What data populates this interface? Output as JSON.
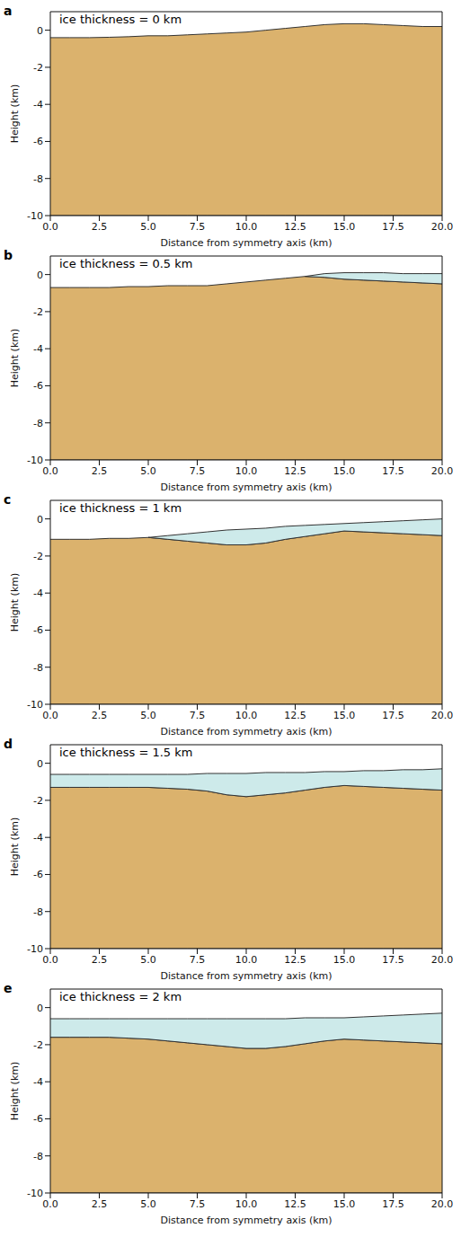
{
  "chart_data": [
    {
      "type": "area",
      "title": "a",
      "annotation": "ice thickness = 0 km",
      "x_label": "Distance from symmetry axis (km)",
      "y_label": "Height (km)",
      "xlim": [
        0,
        20
      ],
      "ylim": [
        -10,
        1
      ],
      "xticks": [
        {
          "value": 0,
          "label": "0.0"
        },
        {
          "value": 2.5,
          "label": "2.5"
        },
        {
          "value": 5,
          "label": "5.0"
        },
        {
          "value": 7.5,
          "label": "7.5"
        },
        {
          "value": 10,
          "label": "10.0"
        },
        {
          "value": 12.5,
          "label": "12.5"
        },
        {
          "value": 15,
          "label": "15.0"
        },
        {
          "value": 17.5,
          "label": "17.5"
        },
        {
          "value": 20,
          "label": "20.0"
        }
      ],
      "yticks": [
        -10,
        -8,
        -6,
        -4,
        -2,
        0
      ],
      "x": [
        0,
        1,
        2,
        3,
        4,
        5,
        6,
        7,
        8,
        9,
        10,
        11,
        12,
        13,
        14,
        15,
        16,
        17,
        18,
        19,
        20
      ],
      "series": [
        {
          "color": "#dbb26d",
          "values": [
            -0.4,
            -0.4,
            -0.4,
            -0.38,
            -0.35,
            -0.3,
            -0.3,
            -0.25,
            -0.2,
            -0.15,
            -0.1,
            0,
            0.1,
            0.2,
            0.3,
            0.35,
            0.35,
            0.3,
            0.25,
            0.2,
            0.2
          ]
        }
      ]
    },
    {
      "type": "area",
      "title": "b",
      "annotation": "ice thickness = 0.5 km",
      "x_label": "Distance from symmetry axis (km)",
      "y_label": "Height (km)",
      "xlim": [
        0,
        20
      ],
      "ylim": [
        -10,
        1
      ],
      "xticks": [
        {
          "value": 0,
          "label": "0.0"
        },
        {
          "value": 2.5,
          "label": "2.5"
        },
        {
          "value": 5,
          "label": "5.0"
        },
        {
          "value": 7.5,
          "label": "7.5"
        },
        {
          "value": 10,
          "label": "10.0"
        },
        {
          "value": 12.5,
          "label": "12.5"
        },
        {
          "value": 15,
          "label": "15.0"
        },
        {
          "value": 17.5,
          "label": "17.5"
        },
        {
          "value": 20,
          "label": "20.0"
        }
      ],
      "yticks": [
        -10,
        -8,
        -6,
        -4,
        -2,
        0
      ],
      "x": [
        0,
        1,
        2,
        3,
        4,
        5,
        6,
        7,
        8,
        9,
        10,
        11,
        12,
        13,
        14,
        15,
        16,
        17,
        18,
        19,
        20
      ],
      "series": [
        {
          "color": "#dbb26d",
          "values": [
            -0.7,
            -0.7,
            -0.7,
            -0.7,
            -0.65,
            -0.65,
            -0.6,
            -0.6,
            -0.6,
            -0.5,
            -0.4,
            -0.3,
            -0.2,
            -0.1,
            -0.15,
            -0.25,
            -0.3,
            -0.35,
            -0.4,
            -0.45,
            -0.5
          ]
        },
        {
          "color": "#cdeaea",
          "values": [
            null,
            null,
            null,
            null,
            null,
            null,
            null,
            null,
            null,
            null,
            null,
            null,
            null,
            -0.1,
            0.05,
            0.1,
            0.1,
            0.1,
            0.05,
            0.05,
            0.05
          ]
        }
      ]
    },
    {
      "type": "area",
      "title": "c",
      "annotation": "ice thickness = 1 km",
      "x_label": "Distance from symmetry axis (km)",
      "y_label": "Height (km)",
      "xlim": [
        0,
        20
      ],
      "ylim": [
        -10,
        1
      ],
      "xticks": [
        {
          "value": 0,
          "label": "0.0"
        },
        {
          "value": 2.5,
          "label": "2.5"
        },
        {
          "value": 5,
          "label": "5.0"
        },
        {
          "value": 7.5,
          "label": "7.5"
        },
        {
          "value": 10,
          "label": "10.0"
        },
        {
          "value": 12.5,
          "label": "12.5"
        },
        {
          "value": 15,
          "label": "15.0"
        },
        {
          "value": 17.5,
          "label": "17.5"
        },
        {
          "value": 20,
          "label": "20.0"
        }
      ],
      "yticks": [
        -10,
        -8,
        -6,
        -4,
        -2,
        0
      ],
      "x": [
        0,
        1,
        2,
        3,
        4,
        5,
        6,
        7,
        8,
        9,
        10,
        11,
        12,
        13,
        14,
        15,
        16,
        17,
        18,
        19,
        20
      ],
      "series": [
        {
          "color": "#dbb26d",
          "values": [
            -1.1,
            -1.1,
            -1.1,
            -1.05,
            -1.05,
            -1.0,
            -1.1,
            -1.2,
            -1.3,
            -1.4,
            -1.4,
            -1.3,
            -1.1,
            -0.95,
            -0.8,
            -0.65,
            -0.7,
            -0.75,
            -0.8,
            -0.85,
            -0.9
          ]
        },
        {
          "color": "#cdeaea",
          "values": [
            null,
            null,
            null,
            null,
            null,
            -1.0,
            -0.9,
            -0.8,
            -0.7,
            -0.6,
            -0.55,
            -0.5,
            -0.4,
            -0.35,
            -0.3,
            -0.25,
            -0.2,
            -0.15,
            -0.1,
            -0.05,
            0
          ]
        }
      ]
    },
    {
      "type": "area",
      "title": "d",
      "annotation": "ice thickness = 1.5 km",
      "x_label": "Distance from symmetry axis (km)",
      "y_label": "Height (km)",
      "xlim": [
        0,
        20
      ],
      "ylim": [
        -10,
        1
      ],
      "xticks": [
        {
          "value": 0,
          "label": "0.0"
        },
        {
          "value": 2.5,
          "label": "2.5"
        },
        {
          "value": 5,
          "label": "5.0"
        },
        {
          "value": 7.5,
          "label": "7.5"
        },
        {
          "value": 10,
          "label": "10.0"
        },
        {
          "value": 12.5,
          "label": "12.5"
        },
        {
          "value": 15,
          "label": "15.0"
        },
        {
          "value": 17.5,
          "label": "17.5"
        },
        {
          "value": 20,
          "label": "20.0"
        }
      ],
      "yticks": [
        -10,
        -8,
        -6,
        -4,
        -2,
        0
      ],
      "x": [
        0,
        1,
        2,
        3,
        4,
        5,
        6,
        7,
        8,
        9,
        10,
        11,
        12,
        13,
        14,
        15,
        16,
        17,
        18,
        19,
        20
      ],
      "series": [
        {
          "color": "#dbb26d",
          "values": [
            -1.3,
            -1.3,
            -1.3,
            -1.3,
            -1.3,
            -1.3,
            -1.35,
            -1.4,
            -1.5,
            -1.7,
            -1.8,
            -1.7,
            -1.6,
            -1.45,
            -1.3,
            -1.2,
            -1.25,
            -1.3,
            -1.35,
            -1.4,
            -1.45
          ]
        },
        {
          "color": "#cdeaea",
          "values": [
            -0.6,
            -0.6,
            -0.6,
            -0.6,
            -0.6,
            -0.6,
            -0.6,
            -0.6,
            -0.55,
            -0.55,
            -0.55,
            -0.5,
            -0.5,
            -0.5,
            -0.45,
            -0.45,
            -0.4,
            -0.4,
            -0.35,
            -0.35,
            -0.3
          ]
        }
      ]
    },
    {
      "type": "area",
      "title": "e",
      "annotation": "ice thickness = 2 km",
      "x_label": "Distance from symmetry axis (km)",
      "y_label": "Height (km)",
      "xlim": [
        0,
        20
      ],
      "ylim": [
        -10,
        1
      ],
      "xticks": [
        {
          "value": 0,
          "label": "0.0"
        },
        {
          "value": 2.5,
          "label": "2.5"
        },
        {
          "value": 5,
          "label": "5.0"
        },
        {
          "value": 7.5,
          "label": "7.5"
        },
        {
          "value": 10,
          "label": "10.0"
        },
        {
          "value": 12.5,
          "label": "12.5"
        },
        {
          "value": 15,
          "label": "15.0"
        },
        {
          "value": 17.5,
          "label": "17.5"
        },
        {
          "value": 20,
          "label": "20.0"
        }
      ],
      "yticks": [
        -10,
        -8,
        -6,
        -4,
        -2,
        0
      ],
      "x": [
        0,
        1,
        2,
        3,
        4,
        5,
        6,
        7,
        8,
        9,
        10,
        11,
        12,
        13,
        14,
        15,
        16,
        17,
        18,
        19,
        20
      ],
      "series": [
        {
          "color": "#dbb26d",
          "values": [
            -1.6,
            -1.6,
            -1.6,
            -1.6,
            -1.65,
            -1.7,
            -1.8,
            -1.9,
            -2.0,
            -2.1,
            -2.2,
            -2.2,
            -2.1,
            -1.95,
            -1.8,
            -1.7,
            -1.75,
            -1.8,
            -1.85,
            -1.9,
            -1.95
          ]
        },
        {
          "color": "#cdeaea",
          "values": [
            -0.6,
            -0.6,
            -0.6,
            -0.6,
            -0.6,
            -0.6,
            -0.6,
            -0.6,
            -0.6,
            -0.6,
            -0.6,
            -0.6,
            -0.6,
            -0.55,
            -0.55,
            -0.55,
            -0.5,
            -0.45,
            -0.4,
            -0.35,
            -0.3
          ]
        }
      ]
    }
  ]
}
